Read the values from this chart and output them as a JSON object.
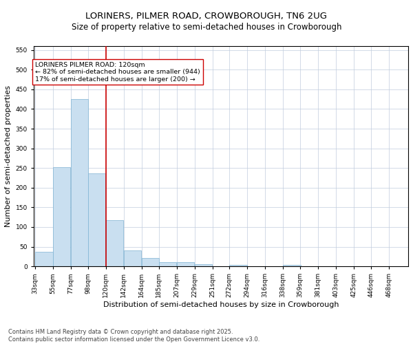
{
  "title1": "LORINERS, PILMER ROAD, CROWBOROUGH, TN6 2UG",
  "title2": "Size of property relative to semi-detached houses in Crowborough",
  "xlabel": "Distribution of semi-detached houses by size in Crowborough",
  "ylabel": "Number of semi-detached properties",
  "bins": [
    33,
    55,
    77,
    98,
    120,
    142,
    164,
    185,
    207,
    229,
    251,
    272,
    294,
    316,
    338,
    359,
    381,
    403,
    425,
    446,
    468
  ],
  "values": [
    37,
    252,
    425,
    236,
    118,
    40,
    22,
    10,
    10,
    6,
    0,
    4,
    0,
    0,
    4,
    0,
    0,
    0,
    0,
    0,
    0
  ],
  "bar_color": "#c9dff0",
  "bar_edge_color": "#7fb3d3",
  "vline_x": 120,
  "vline_color": "#cc0000",
  "ylim": [
    0,
    560
  ],
  "yticks": [
    0,
    50,
    100,
    150,
    200,
    250,
    300,
    350,
    400,
    450,
    500,
    550
  ],
  "annotation_title": "LORINERS PILMER ROAD: 120sqm",
  "annotation_line1": "← 82% of semi-detached houses are smaller (944)",
  "annotation_line2": "17% of semi-detached houses are larger (200) →",
  "annotation_box_color": "#ffffff",
  "annotation_box_edge": "#cc0000",
  "footnote1": "Contains HM Land Registry data © Crown copyright and database right 2025.",
  "footnote2": "Contains public sector information licensed under the Open Government Licence v3.0.",
  "bg_color": "#ffffff",
  "grid_color": "#c0ccdd",
  "title1_fontsize": 9.5,
  "title2_fontsize": 8.5,
  "tick_label_fontsize": 6.5,
  "axis_label_fontsize": 8,
  "annotation_fontsize": 6.8,
  "footnote_fontsize": 6
}
